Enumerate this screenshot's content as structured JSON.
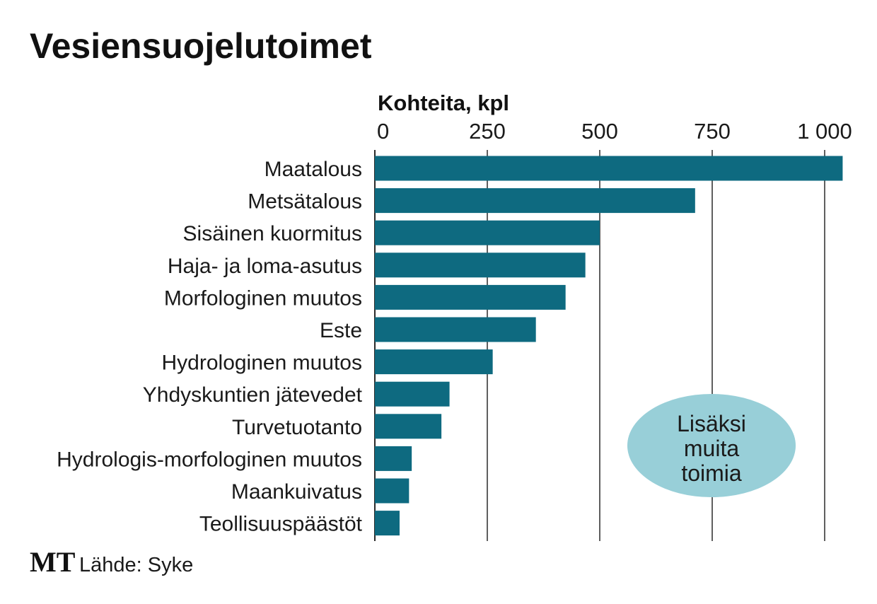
{
  "chart_data": {
    "type": "bar",
    "orientation": "horizontal",
    "title": "Vesiensuojelutoimet",
    "xlabel": "Kohteita, kpl",
    "ylabel": "",
    "xlim": [
      0,
      1050
    ],
    "xticks": [
      0,
      250,
      500,
      750,
      1000
    ],
    "xtick_labels": [
      "0",
      "250",
      "500",
      "750",
      "1 000"
    ],
    "grid": true,
    "categories": [
      "Maatalous",
      "Metsätalous",
      "Sisäinen kuormitus",
      "Haja- ja loma-asutus",
      "Morfologinen muutos",
      "Este",
      "Hydrologinen muutos",
      "Yhdyskuntien jätevedet",
      "Turvetuotanto",
      "Hydrologis-morfologinen muutos",
      "Maankuivatus",
      "Teollisuuspäästöt"
    ],
    "values": [
      1040,
      712,
      500,
      468,
      424,
      358,
      262,
      166,
      148,
      82,
      76,
      55
    ],
    "bar_color": "#0e6a80"
  },
  "annotation": {
    "lines": [
      "Lisäksi",
      "muita",
      "toimia"
    ],
    "color": "#98cfd8"
  },
  "footer": {
    "logo": "MT",
    "source": "Lähde: Syke"
  }
}
